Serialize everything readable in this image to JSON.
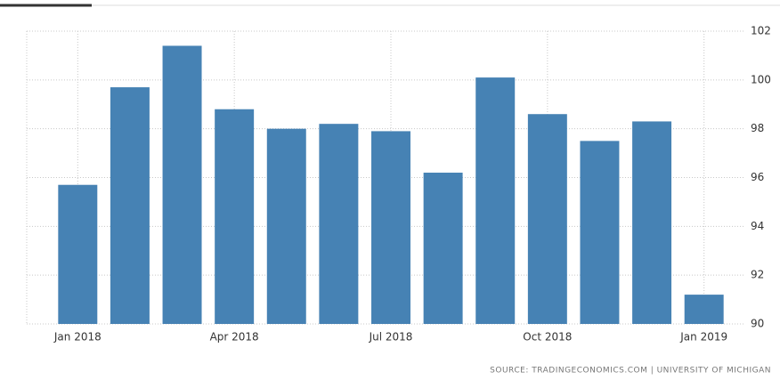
{
  "chart_data": {
    "type": "bar",
    "categories": [
      "Jan 2018",
      null,
      null,
      "Apr 2018",
      null,
      null,
      "Jul 2018",
      null,
      null,
      "Oct 2018",
      null,
      null,
      "Jan 2019"
    ],
    "values": [
      95.7,
      99.7,
      101.4,
      98.8,
      98.0,
      98.2,
      97.9,
      96.2,
      100.1,
      98.6,
      97.5,
      98.3,
      91.2
    ],
    "color": "#4682b4",
    "ylim": [
      90,
      102
    ],
    "yticks": [
      90,
      92,
      94,
      96,
      98,
      100,
      102
    ],
    "grid": true,
    "source": "SOURCE: TRADINGECONOMICS.COM | UNIVERSITY OF MICHIGAN"
  }
}
